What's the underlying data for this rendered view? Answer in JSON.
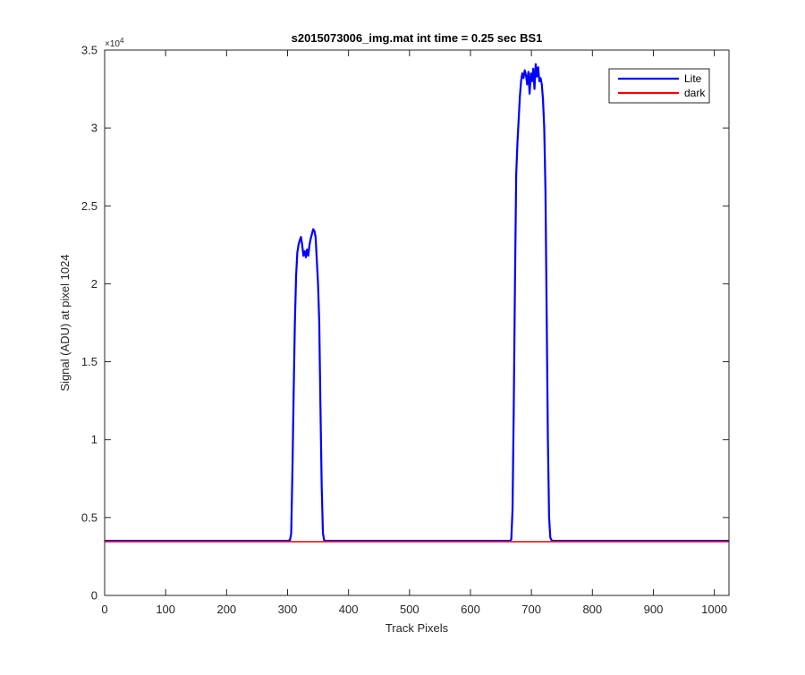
{
  "chart_data": {
    "type": "line",
    "title": "s2015073006_img.mat int time = 0.25 sec   BS1",
    "xlabel": "Track Pixels",
    "ylabel": "Signal (ADU) at pixel 1024",
    "xlim": [
      0,
      1024
    ],
    "ylim": [
      0,
      35000
    ],
    "y_exponent_label": "×10",
    "y_exponent_power": "4",
    "xticks": [
      0,
      100,
      200,
      300,
      400,
      500,
      600,
      700,
      800,
      900,
      1000
    ],
    "xtick_labels": [
      "0",
      "100",
      "200",
      "300",
      "400",
      "500",
      "600",
      "700",
      "800",
      "900",
      "1000"
    ],
    "yticks": [
      0,
      5000,
      10000,
      15000,
      20000,
      25000,
      30000,
      35000
    ],
    "ytick_labels": [
      "0",
      "0.5",
      "1",
      "1.5",
      "2",
      "2.5",
      "3",
      "3.5"
    ],
    "grid": false,
    "legend_position": "top-right",
    "series": [
      {
        "name": "Lite",
        "color": "#0000ff",
        "x": [
          0,
          300,
          304,
          306,
          308,
          310,
          312,
          314,
          316,
          318,
          320,
          322,
          324,
          326,
          328,
          330,
          332,
          334,
          336,
          338,
          340,
          342,
          344,
          346,
          348,
          350,
          352,
          354,
          356,
          358,
          360,
          362,
          364,
          366,
          368,
          370,
          372,
          374,
          376,
          380,
          660,
          665,
          667,
          669,
          671,
          673,
          675,
          677,
          679,
          681,
          683,
          685,
          687,
          689,
          691,
          693,
          695,
          697,
          699,
          701,
          703,
          705,
          707,
          709,
          711,
          713,
          715,
          717,
          719,
          721,
          723,
          725,
          727,
          729,
          731,
          733,
          735,
          740,
          1024
        ],
        "y": [
          3500,
          3500,
          3550,
          4000,
          8000,
          13000,
          17500,
          20500,
          22000,
          22500,
          22800,
          23000,
          22500,
          21800,
          22100,
          21700,
          22200,
          21800,
          22500,
          22900,
          23200,
          23500,
          23400,
          23000,
          21500,
          20000,
          17500,
          12000,
          7000,
          4000,
          3550,
          3500,
          3500,
          3500,
          3500,
          3500,
          3500,
          3500,
          3500,
          3500,
          3500,
          3500,
          3600,
          5500,
          12000,
          20000,
          27000,
          29000,
          30500,
          32000,
          33000,
          33500,
          33200,
          33700,
          33400,
          32800,
          33600,
          32200,
          33500,
          33000,
          33800,
          32500,
          34100,
          33300,
          33900,
          33000,
          33200,
          32800,
          31800,
          30000,
          26000,
          18000,
          10000,
          5000,
          3700,
          3550,
          3500,
          3500,
          3500
        ]
      },
      {
        "name": "dark",
        "color": "#ff0000",
        "x": [
          0,
          1024
        ],
        "y": [
          3450,
          3450
        ]
      }
    ]
  }
}
